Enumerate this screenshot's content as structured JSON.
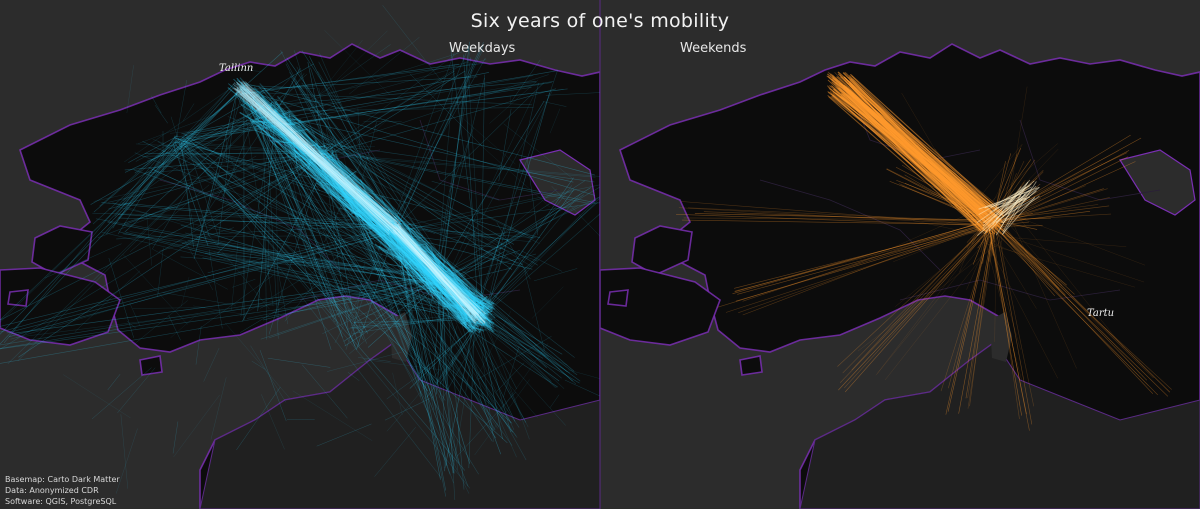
{
  "title": "Six years of one's mobility",
  "panels": {
    "weekdays": {
      "label": "Weekdays",
      "color": "#33d6ff"
    },
    "weekends": {
      "label": "Weekends",
      "color": "#ff9a2e"
    }
  },
  "places": {
    "tallinn": "Tallinn",
    "tartu": "Tartu"
  },
  "credits": {
    "basemap": "Basemap: Carto Dark Matter",
    "data": "Data: Anonymized CDR",
    "software": "Software: QGIS, PostgreSQL"
  },
  "map_style": {
    "water_color": "#2c2c2c",
    "land_color": "#0c0c0c",
    "coast_glow_color": "#7a2fb3"
  }
}
